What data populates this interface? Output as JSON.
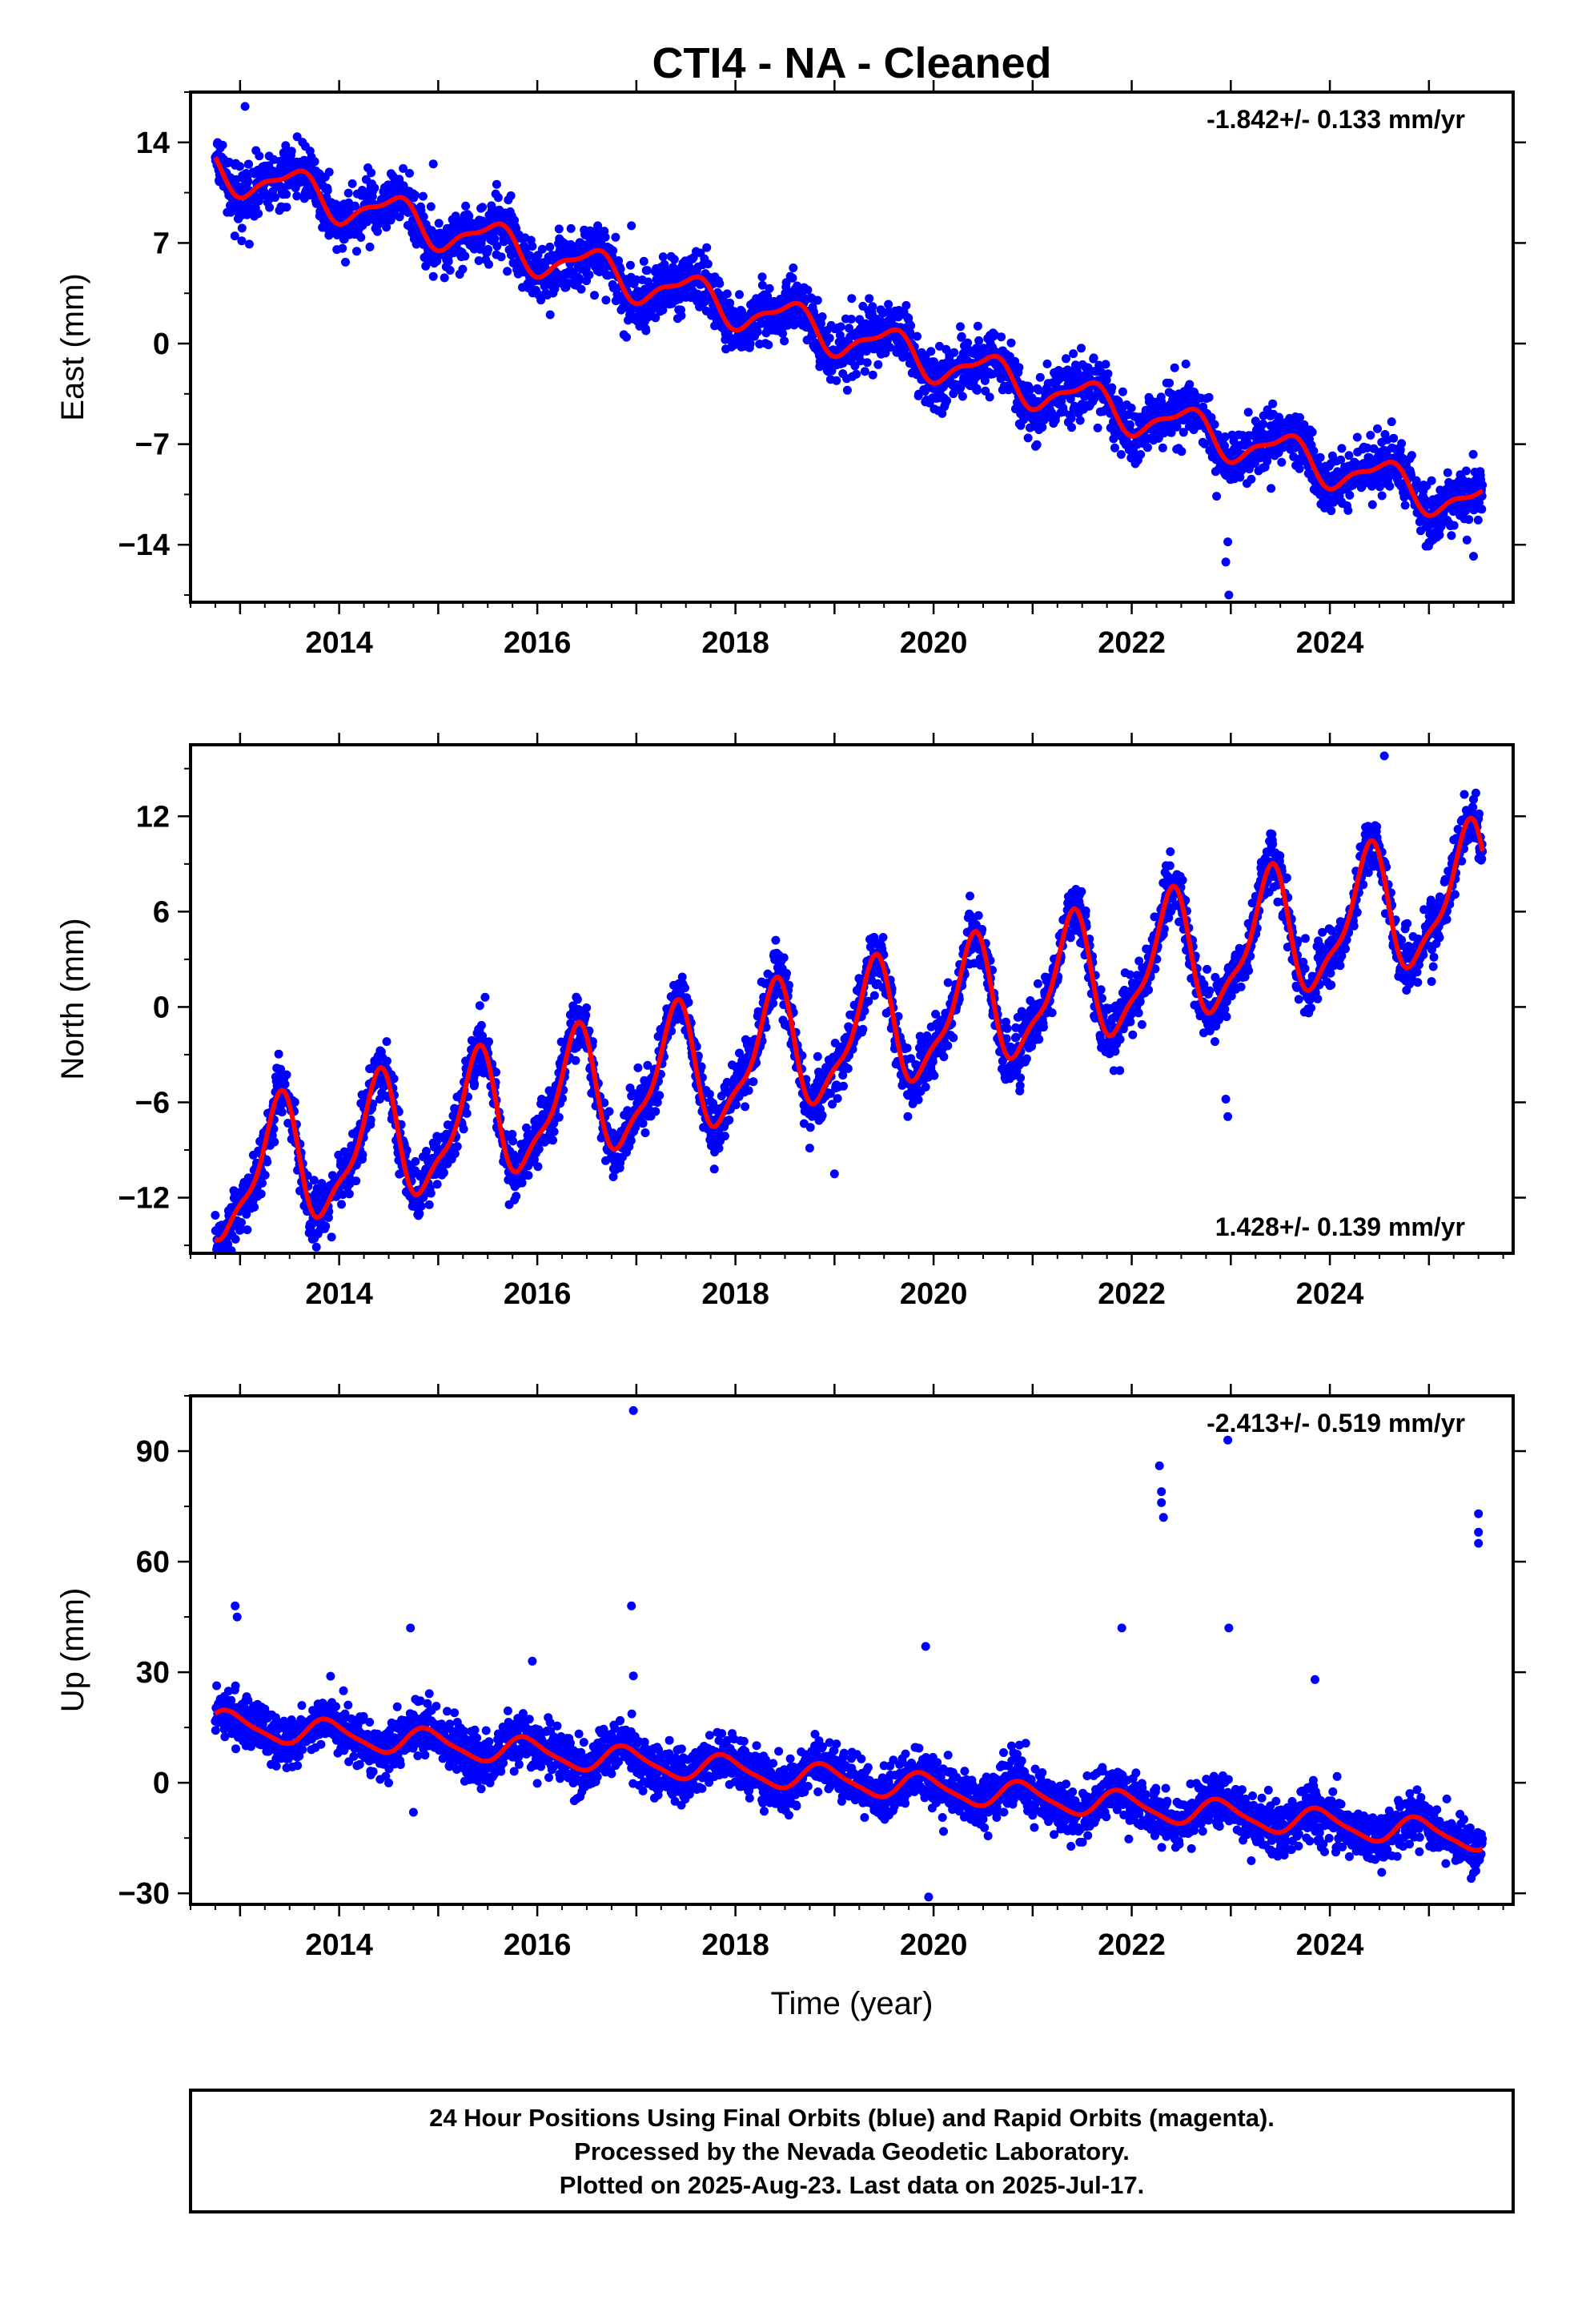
{
  "title": "CTI4  - NA - Cleaned",
  "footer": {
    "lines": [
      "24 Hour Positions Using Final Orbits (blue) and Rapid Orbits (magenta).",
      "Processed by the Nevada Geodetic Laboratory.",
      "Plotted on 2025-Aug-23. Last data on 2025-Jul-17."
    ]
  },
  "colors": {
    "data": "#0000ff",
    "model": "#ff0000",
    "frame": "#000000"
  },
  "chart_data": [
    {
      "type": "scatter",
      "ylabel": "East (mm)",
      "xlabel": "",
      "rate": "-1.842+/- 0.133 mm/yr",
      "rate_position": "top-right",
      "xlim": [
        2012.5,
        2025.85
      ],
      "ylim": [
        -18,
        17.5
      ],
      "xticks": [
        2014,
        2016,
        2018,
        2020,
        2022,
        2024
      ],
      "yticks": [
        14,
        7,
        0,
        -7,
        -14
      ],
      "ytick_labels": [
        "14",
        "7",
        "0",
        "−7",
        "−14"
      ],
      "data_range": [
        2012.75,
        2025.54
      ],
      "series": [
        {
          "name": "Final Orbits",
          "trend": {
            "t0": 2012.75,
            "v0": 12.2,
            "slope": -1.842
          },
          "seasonal": {
            "annual": 1.3,
            "annual_phase": 0.55,
            "semiannual": 0.45,
            "semiannual_phase": 0.2
          },
          "noise_sd": 1.0,
          "outliers": [
            [
              2022.98,
              -17.5
            ],
            [
              2022.95,
              -15.2
            ],
            [
              2022.97,
              -13.8
            ],
            [
              2025.45,
              -14.8
            ],
            [
              2013.05,
              16.5
            ],
            [
              2016.95,
              8.2
            ],
            [
              2014.95,
              12.5
            ]
          ]
        }
      ]
    },
    {
      "type": "scatter",
      "ylabel": "North (mm)",
      "xlabel": "",
      "rate": "1.428+/- 0.139 mm/yr",
      "rate_position": "bottom-right",
      "xlim": [
        2012.5,
        2025.85
      ],
      "ylim": [
        -15.5,
        16.5
      ],
      "xticks": [
        2014,
        2016,
        2018,
        2020,
        2022,
        2024
      ],
      "yticks": [
        12,
        6,
        0,
        -6,
        -12
      ],
      "ytick_labels": [
        "12",
        "6",
        "0",
        "−6",
        "−12"
      ],
      "data_range": [
        2012.75,
        2025.54
      ],
      "series": [
        {
          "name": "Final Orbits",
          "trend": {
            "t0": 2012.75,
            "v0": -11.0,
            "slope": 1.428
          },
          "seasonal": {
            "annual": 3.8,
            "annual_phase": 0.38,
            "semiannual": 1.2,
            "semiannual_phase": 0.45
          },
          "noise_sd": 0.9,
          "outliers": [
            [
              2022.95,
              -5.8
            ],
            [
              2022.97,
              -6.9
            ],
            [
              2021.88,
              -4.0
            ],
            [
              2019.0,
              -10.5
            ],
            [
              2012.9,
              -14.2
            ],
            [
              2024.55,
              15.8
            ]
          ]
        }
      ]
    },
    {
      "type": "scatter",
      "ylabel": "Up (mm)",
      "xlabel": "Time (year)",
      "rate": "-2.413+/- 0.519 mm/yr",
      "rate_position": "top-right",
      "xlim": [
        2012.5,
        2025.85
      ],
      "ylim": [
        -33,
        105
      ],
      "xticks": [
        2014,
        2016,
        2018,
        2020,
        2022,
        2024
      ],
      "yticks": [
        90,
        60,
        30,
        0,
        -30
      ],
      "ytick_labels": [
        "90",
        "60",
        "30",
        "0",
        "−30"
      ],
      "data_range": [
        2012.75,
        2025.54
      ],
      "series": [
        {
          "name": "Final Orbits",
          "trend": {
            "t0": 2012.75,
            "v0": 16.0,
            "slope": -2.413
          },
          "seasonal": {
            "annual": 3.5,
            "annual_phase": 0.9,
            "semiannual": 0.8,
            "semiannual_phase": 0.3
          },
          "noise_sd": 3.5,
          "outliers": [
            [
              2016.97,
              101
            ],
            [
              2022.97,
              93
            ],
            [
              2022.28,
              86
            ],
            [
              2022.3,
              79
            ],
            [
              2022.3,
              76
            ],
            [
              2022.32,
              72
            ],
            [
              2025.5,
              73
            ],
            [
              2025.5,
              68
            ],
            [
              2025.5,
              65
            ],
            [
              2012.95,
              48
            ],
            [
              2012.97,
              45
            ],
            [
              2016.95,
              48
            ],
            [
              2014.72,
              42
            ],
            [
              2021.9,
              42
            ],
            [
              2022.98,
              42
            ],
            [
              2015.95,
              33
            ],
            [
              2019.92,
              37
            ],
            [
              2019.95,
              -31
            ],
            [
              2016.97,
              29
            ],
            [
              2023.85,
              28
            ],
            [
              2014.75,
              -8
            ]
          ]
        }
      ]
    }
  ]
}
